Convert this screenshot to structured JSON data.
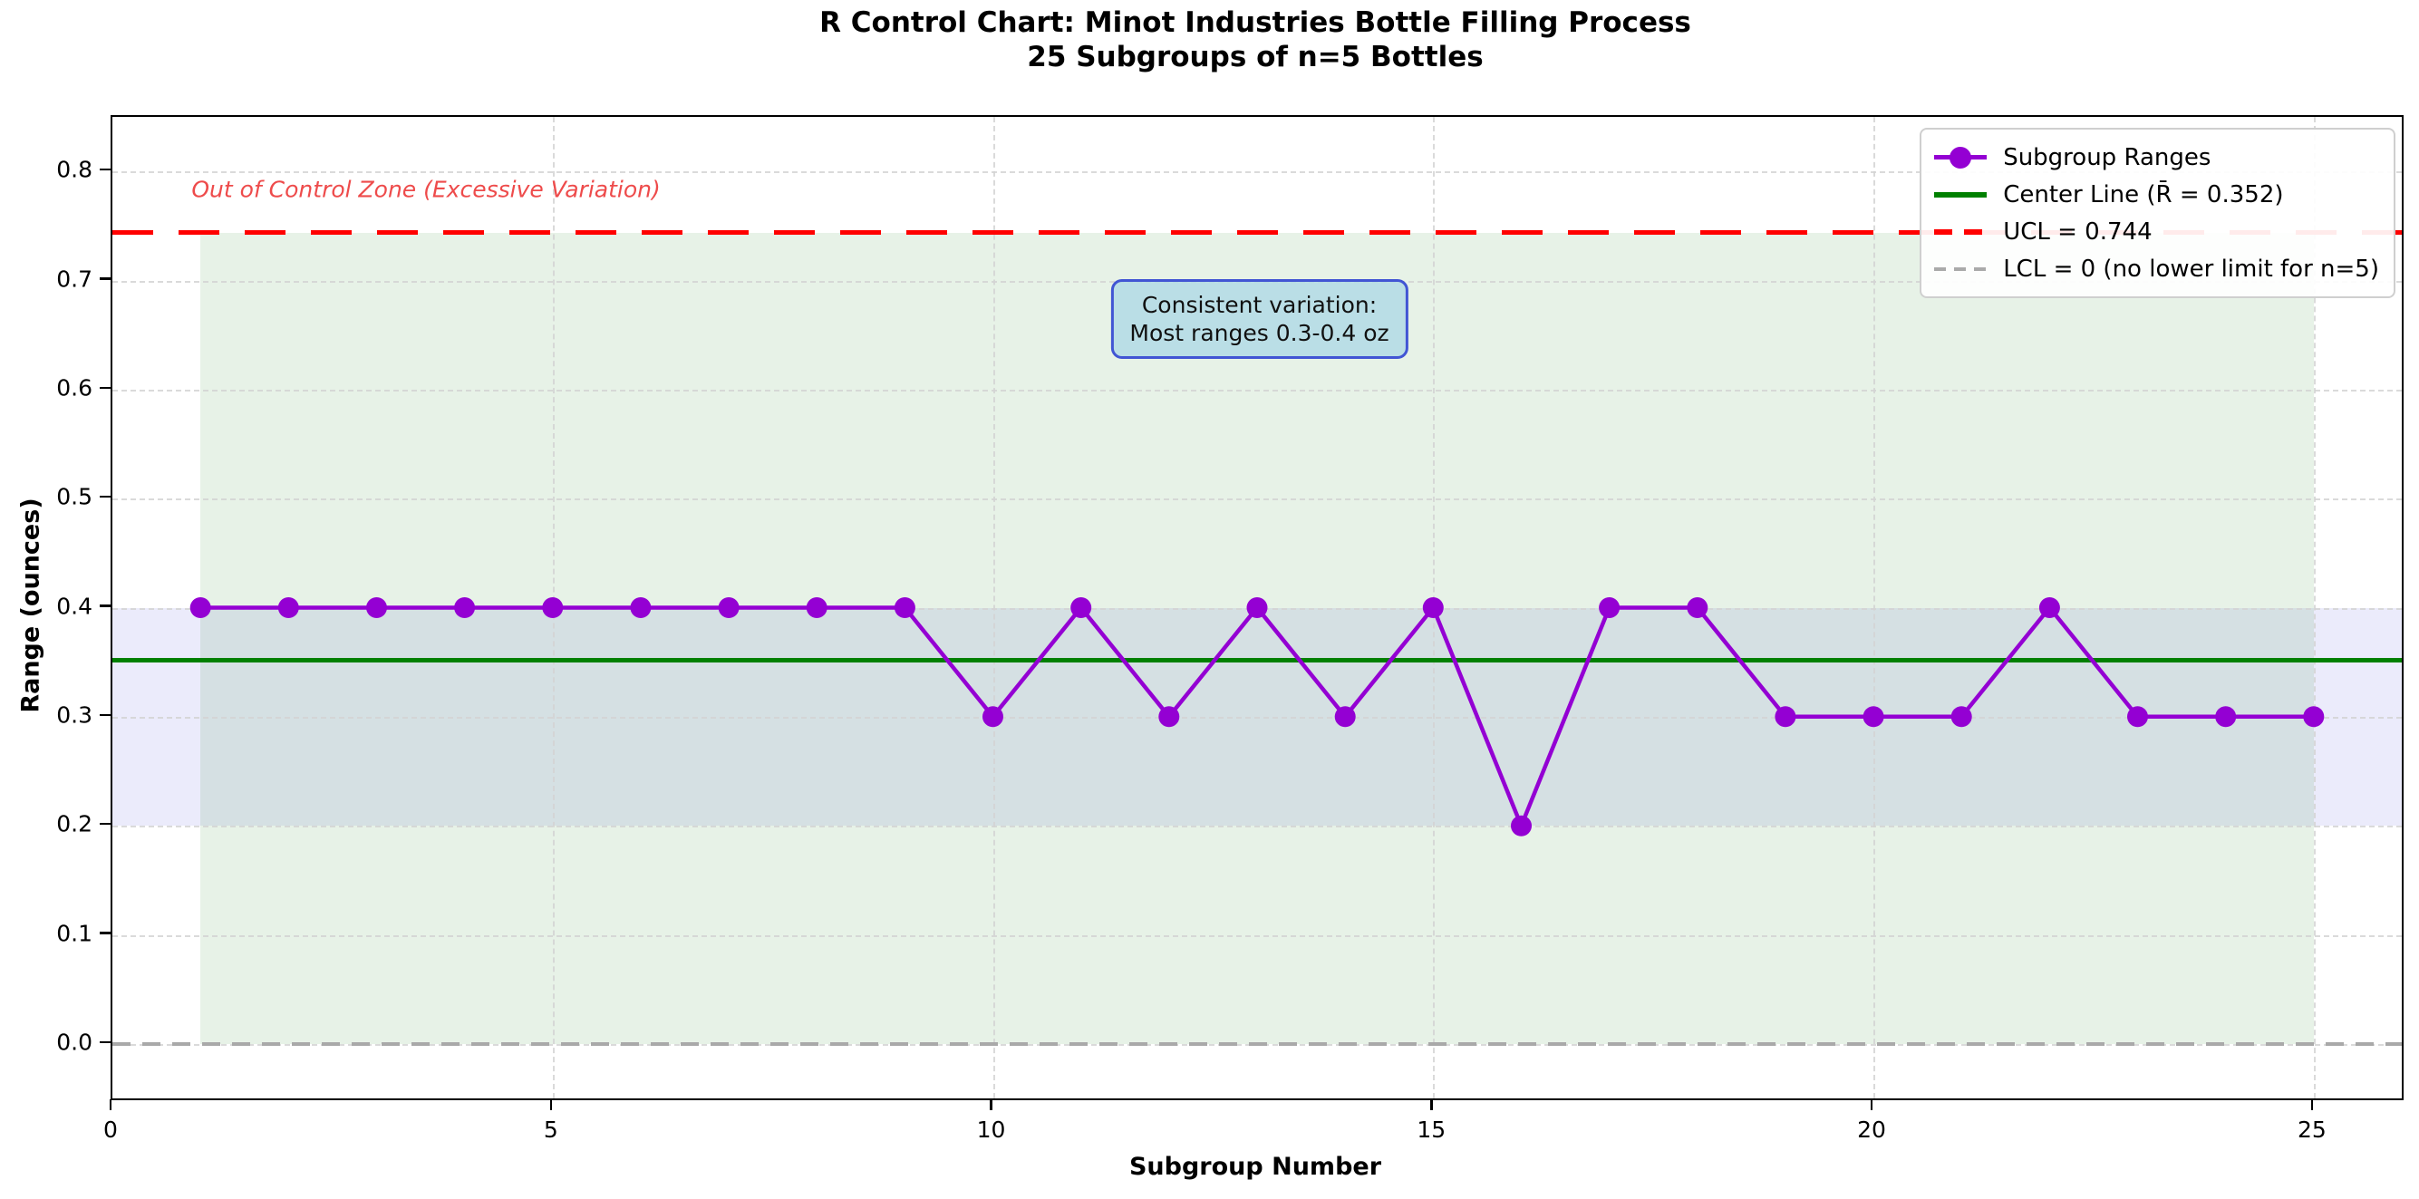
{
  "title": {
    "line1": "R Control Chart: Minot Industries Bottle Filling Process",
    "line2": "25 Subgroups of n=5 Bottles"
  },
  "axes": {
    "x_label": "Subgroup Number",
    "y_label": "Range (ounces)",
    "x_ticks": [
      "0",
      "5",
      "10",
      "15",
      "20",
      "25"
    ],
    "y_ticks": [
      "0.0",
      "0.1",
      "0.2",
      "0.3",
      "0.4",
      "0.5",
      "0.6",
      "0.7",
      "0.8"
    ]
  },
  "legend": {
    "items": [
      {
        "label": "Subgroup Ranges",
        "swatch": "line-marker",
        "color": "#9400d3"
      },
      {
        "label": "Center Line (R̄ = 0.352)",
        "swatch": "solid",
        "color": "#008000"
      },
      {
        "label": "UCL = 0.744",
        "swatch": "dashed-long",
        "color": "#ff0000"
      },
      {
        "label": "LCL = 0 (no lower limit for n=5)",
        "swatch": "dashed-short",
        "color": "#aaaaaa"
      }
    ]
  },
  "annotations": {
    "out_of_control": "Out of Control Zone (Excessive Variation)",
    "note_line1": "Consistent variation:",
    "note_line2": "Most ranges 0.3-0.4 oz"
  },
  "colors": {
    "series": "#9400d3",
    "center_line": "#008000",
    "ucl": "#ff0000",
    "lcl": "#aaaaaa",
    "in_control_fill": "#228b22",
    "band_fill": "#e6e6fa",
    "note_border": "#4155d4",
    "note_fill": "#add8e6",
    "ooc_text": "#ee4b4b"
  },
  "chart_data": {
    "type": "line",
    "title": "R Control Chart: Minot Industries Bottle Filling Process",
    "subtitle": "25 Subgroups of n=5 Bottles",
    "xlabel": "Subgroup Number",
    "ylabel": "Range (ounces)",
    "x": [
      1,
      2,
      3,
      4,
      5,
      6,
      7,
      8,
      9,
      10,
      11,
      12,
      13,
      14,
      15,
      16,
      17,
      18,
      19,
      20,
      21,
      22,
      23,
      24,
      25
    ],
    "series": [
      {
        "name": "Subgroup Ranges",
        "color": "#9400d3",
        "values": [
          0.4,
          0.4,
          0.4,
          0.4,
          0.4,
          0.4,
          0.4,
          0.4,
          0.4,
          0.3,
          0.4,
          0.3,
          0.4,
          0.3,
          0.4,
          0.2,
          0.4,
          0.4,
          0.3,
          0.3,
          0.3,
          0.4,
          0.3,
          0.3,
          0.3
        ]
      }
    ],
    "reference_lines": [
      {
        "name": "Center Line",
        "value": 0.352,
        "style": "solid",
        "color": "#008000"
      },
      {
        "name": "UCL",
        "value": 0.744,
        "style": "dashed",
        "color": "#ff0000"
      },
      {
        "name": "LCL",
        "value": 0,
        "style": "dashed",
        "color": "#aaaaaa"
      }
    ],
    "shaded_regions": [
      {
        "name": "in-control-zone",
        "x0": 1,
        "x1": 25,
        "y0": 0,
        "y1": 0.744,
        "color": "#228b22",
        "alpha": 0.11
      },
      {
        "name": "typical-range-band",
        "y0": 0.2,
        "y1": 0.4,
        "color": "#e6e6fa",
        "alpha": 0.82
      }
    ],
    "xlim": [
      0,
      26
    ],
    "ylim": [
      -0.05,
      0.85
    ],
    "grid": true,
    "legend_position": "upper right"
  }
}
